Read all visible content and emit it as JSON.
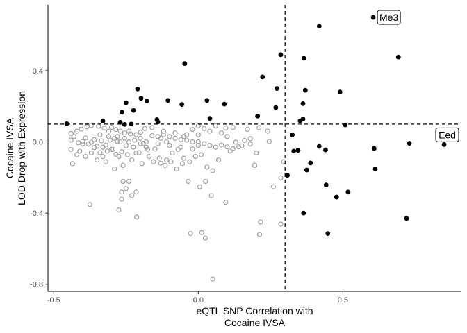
{
  "chart_data": {
    "type": "scatter",
    "xlabel": [
      "eQTL SNP Correlation with",
      "Cocaine IVSA"
    ],
    "ylabel": [
      "Cocaine IVSA",
      "LOD Drop with Expression"
    ],
    "xlim": [
      -0.52,
      0.91
    ],
    "ylim": [
      -0.84,
      0.77
    ],
    "x_ticks": [
      -0.5,
      0.0,
      0.5
    ],
    "x_tick_labels": [
      "-0.5",
      "0.0",
      "0.5"
    ],
    "y_ticks": [
      -0.8,
      -0.4,
      0.0,
      0.4
    ],
    "y_tick_labels": [
      "-0.8",
      "-0.4",
      "0.0",
      "0.4"
    ],
    "x_threshold": 0.3,
    "y_threshold": 0.1,
    "grid": false,
    "colors": {
      "significant": "#000000",
      "not_significant": "#a0a0a0"
    },
    "labeled_points": [
      {
        "label": "Me3",
        "x": 0.605,
        "y": 0.7
      },
      {
        "label": "Eed",
        "x": 0.85,
        "y": -0.015
      }
    ],
    "series": [
      {
        "style": "filled-black",
        "points": [
          [
            0.605,
            0.7
          ],
          [
            0.418,
            0.65
          ],
          [
            0.692,
            0.477
          ],
          [
            0.285,
            0.49
          ],
          [
            0.365,
            0.47
          ],
          [
            -0.047,
            0.44
          ],
          [
            0.222,
            0.365
          ],
          [
            0.272,
            0.3
          ],
          [
            0.37,
            0.29
          ],
          [
            0.49,
            0.28
          ],
          [
            0.03,
            0.233
          ],
          [
            -0.21,
            0.297
          ],
          [
            -0.198,
            0.245
          ],
          [
            -0.178,
            0.23
          ],
          [
            -0.105,
            0.233
          ],
          [
            -0.25,
            0.22
          ],
          [
            -0.057,
            0.21
          ],
          [
            0.09,
            0.212
          ],
          [
            0.362,
            0.215
          ],
          [
            0.268,
            0.193
          ],
          [
            -0.224,
            0.177
          ],
          [
            -0.264,
            0.167
          ],
          [
            0.04,
            0.132
          ],
          [
            0.205,
            0.145
          ],
          [
            0.352,
            0.118
          ],
          [
            0.362,
            0.128
          ],
          [
            -0.143,
            0.125
          ],
          [
            -0.33,
            0.117
          ],
          [
            -0.14,
            0.112
          ],
          [
            -0.27,
            0.11
          ],
          [
            -0.255,
            0.098
          ],
          [
            -0.232,
            0.1
          ],
          [
            -0.455,
            0.102
          ],
          [
            0.508,
            0.095
          ],
          [
            0.325,
            0.04
          ],
          [
            0.85,
            -0.015
          ],
          [
            0.73,
            -0.008
          ],
          [
            0.418,
            -0.025
          ],
          [
            0.608,
            -0.037
          ],
          [
            0.44,
            -0.045
          ],
          [
            0.345,
            -0.047
          ],
          [
            0.33,
            -0.052
          ],
          [
            0.388,
            -0.118
          ],
          [
            0.375,
            -0.158
          ],
          [
            0.612,
            -0.152
          ],
          [
            0.308,
            -0.188
          ],
          [
            0.442,
            -0.242
          ],
          [
            0.518,
            -0.282
          ],
          [
            0.478,
            -0.31
          ],
          [
            0.364,
            -0.4
          ],
          [
            0.72,
            -0.43
          ],
          [
            0.448,
            -0.515
          ]
        ]
      },
      {
        "style": "hollow-grey",
        "points": [
          [
            -0.44,
            0.047
          ],
          [
            -0.42,
            0.06
          ],
          [
            -0.405,
            0.072
          ],
          [
            -0.385,
            0.085
          ],
          [
            -0.37,
            0.092
          ],
          [
            -0.345,
            0.088
          ],
          [
            -0.325,
            0.078
          ],
          [
            -0.3,
            0.082
          ],
          [
            -0.285,
            0.07
          ],
          [
            -0.27,
            0.06
          ],
          [
            -0.255,
            0.05
          ],
          [
            -0.235,
            0.045
          ],
          [
            -0.215,
            0.04
          ],
          [
            -0.2,
            0.055
          ],
          [
            -0.185,
            0.075
          ],
          [
            -0.16,
            0.035
          ],
          [
            -0.14,
            0.03
          ],
          [
            -0.12,
            0.04
          ],
          [
            -0.1,
            0.03
          ],
          [
            -0.08,
            0.02
          ],
          [
            -0.06,
            0.012
          ],
          [
            -0.04,
            0.01
          ],
          [
            -0.02,
            0.0
          ],
          [
            0.0,
            0.0
          ],
          [
            0.02,
            -0.01
          ],
          [
            0.04,
            -0.02
          ],
          [
            0.06,
            -0.03
          ],
          [
            0.08,
            -0.018
          ],
          [
            0.1,
            -0.028
          ],
          [
            0.12,
            -0.038
          ],
          [
            0.14,
            -0.028
          ],
          [
            0.16,
            0.008
          ],
          [
            0.18,
            0.018
          ],
          [
            0.21,
            0.08
          ],
          [
            0.24,
            0.06
          ],
          [
            0.12,
            0.08
          ],
          [
            0.17,
            0.07
          ],
          [
            0.095,
            0.078
          ],
          [
            0.06,
            0.09
          ],
          [
            0.02,
            0.075
          ],
          [
            -0.44,
            0.01
          ],
          [
            -0.43,
            0.03
          ],
          [
            -0.415,
            -0.005
          ],
          [
            -0.4,
            0.002
          ],
          [
            -0.39,
            0.022
          ],
          [
            -0.38,
            -0.012
          ],
          [
            -0.36,
            0.012
          ],
          [
            -0.35,
            -0.025
          ],
          [
            -0.335,
            0.006
          ],
          [
            -0.32,
            -0.018
          ],
          [
            -0.31,
            0.03
          ],
          [
            -0.295,
            -0.042
          ],
          [
            -0.28,
            0.002
          ],
          [
            -0.265,
            -0.055
          ],
          [
            -0.25,
            -0.022
          ],
          [
            -0.24,
            0.0
          ],
          [
            -0.225,
            -0.03
          ],
          [
            -0.205,
            -0.06
          ],
          [
            -0.19,
            -0.008
          ],
          [
            -0.17,
            -0.082
          ],
          [
            -0.15,
            -0.04
          ],
          [
            -0.13,
            -0.12
          ],
          [
            -0.11,
            -0.102
          ],
          [
            -0.09,
            -0.062
          ],
          [
            -0.07,
            -0.042
          ],
          [
            -0.05,
            -0.092
          ],
          [
            -0.03,
            -0.112
          ],
          [
            -0.01,
            -0.082
          ],
          [
            0.01,
            -0.072
          ],
          [
            0.03,
            -0.142
          ],
          [
            0.05,
            -0.162
          ],
          [
            0.07,
            -0.102
          ],
          [
            0.11,
            -0.052
          ],
          [
            0.13,
            -0.002
          ],
          [
            0.15,
            -0.022
          ],
          [
            0.18,
            -0.012
          ],
          [
            0.2,
            -0.062
          ],
          [
            -0.44,
            -0.042
          ],
          [
            -0.435,
            -0.122
          ],
          [
            -0.42,
            -0.072
          ],
          [
            -0.41,
            -0.052
          ],
          [
            -0.39,
            -0.082
          ],
          [
            -0.37,
            -0.062
          ],
          [
            -0.35,
            -0.102
          ],
          [
            -0.33,
            -0.082
          ],
          [
            -0.32,
            -0.112
          ],
          [
            -0.3,
            -0.042
          ],
          [
            -0.29,
            -0.152
          ],
          [
            -0.275,
            -0.082
          ],
          [
            -0.26,
            -0.132
          ],
          [
            -0.245,
            -0.072
          ],
          [
            -0.23,
            -0.102
          ],
          [
            -0.215,
            -0.062
          ],
          [
            -0.195,
            -0.122
          ],
          [
            -0.175,
            -0.042
          ],
          [
            -0.155,
            -0.112
          ],
          [
            -0.135,
            -0.092
          ],
          [
            -0.115,
            -0.132
          ],
          [
            -0.095,
            -0.112
          ],
          [
            -0.075,
            -0.152
          ],
          [
            -0.055,
            -0.122
          ],
          [
            -0.035,
            -0.222
          ],
          [
            0.005,
            -0.252
          ],
          [
            0.025,
            -0.222
          ],
          [
            0.045,
            -0.302
          ],
          [
            -0.26,
            -0.222
          ],
          [
            -0.25,
            -0.262
          ],
          [
            -0.24,
            -0.222
          ],
          [
            -0.265,
            -0.282
          ],
          [
            -0.23,
            -0.302
          ],
          [
            -0.265,
            -0.322
          ],
          [
            -0.275,
            -0.382
          ],
          [
            -0.215,
            -0.282
          ],
          [
            -0.213,
            -0.422
          ],
          [
            -0.375,
            -0.352
          ],
          [
            -0.027,
            -0.515
          ],
          [
            0.012,
            -0.51
          ],
          [
            0.024,
            -0.54
          ],
          [
            0.095,
            -0.34
          ],
          [
            0.05,
            -0.77
          ],
          [
            0.215,
            -0.45
          ],
          [
            0.212,
            -0.52
          ],
          [
            0.285,
            -0.462
          ],
          [
            0.26,
            -0.252
          ],
          [
            0.285,
            -0.202
          ],
          [
            0.295,
            -0.112
          ],
          [
            0.245,
            0.002
          ],
          [
            0.195,
            -0.132
          ],
          [
            0.0,
            0.09
          ],
          [
            -0.02,
            0.07
          ],
          [
            0.08,
            0.05
          ],
          [
            0.1,
            0.03
          ],
          [
            0.04,
            0.06
          ],
          [
            0.0,
            0.04
          ],
          [
            -0.4,
            -0.012
          ],
          [
            -0.36,
            -0.032
          ],
          [
            -0.34,
            0.04
          ],
          [
            -0.31,
            0.06
          ],
          [
            -0.29,
            0.02
          ],
          [
            -0.28,
            0.03
          ],
          [
            -0.27,
            0.0
          ],
          [
            -0.24,
            0.06
          ],
          [
            -0.22,
            0.01
          ],
          [
            -0.2,
            0.02
          ],
          [
            -0.18,
            0.0
          ],
          [
            -0.16,
            0.08
          ],
          [
            -0.14,
            -0.01
          ],
          [
            -0.12,
            0.06
          ],
          [
            -0.1,
            -0.02
          ],
          [
            -0.08,
            0.05
          ],
          [
            -0.06,
            -0.03
          ],
          [
            -0.04,
            0.04
          ],
          [
            -0.02,
            -0.04
          ],
          [
            -0.34,
            -0.06
          ],
          [
            -0.33,
            -0.03
          ],
          [
            -0.37,
            -0.002
          ],
          [
            -0.315,
            -0.052
          ],
          [
            -0.305,
            0.01
          ],
          [
            -0.285,
            -0.07
          ],
          [
            -0.255,
            0.02
          ],
          [
            -0.2,
            -0.01
          ],
          [
            -0.18,
            -0.03
          ],
          [
            -0.13,
            0.02
          ],
          [
            -0.11,
            0.0
          ],
          [
            -0.05,
            0.03
          ],
          [
            0.0,
            -0.02
          ]
        ]
      }
    ]
  }
}
